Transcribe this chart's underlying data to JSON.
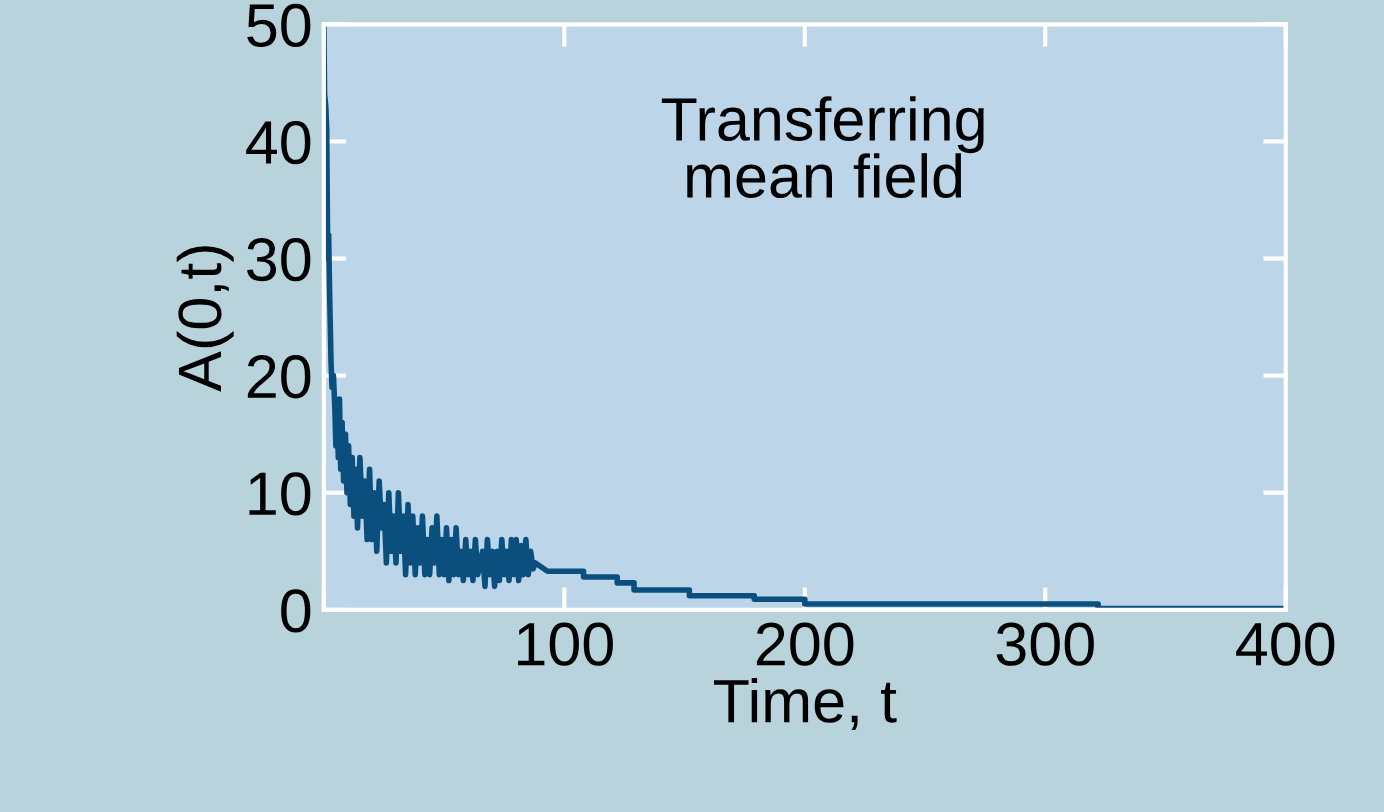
{
  "chart_data": {
    "type": "line",
    "xlabel": "Time, t",
    "ylabel": "A(0,t)",
    "xlim": [
      0,
      400
    ],
    "xticks": [
      {
        "value": 0,
        "label": null
      },
      100,
      200,
      300,
      400
    ],
    "ylim": [
      0,
      50
    ],
    "yticks": [
      0,
      10,
      20,
      30,
      40,
      50
    ],
    "grid": false,
    "annotations": [
      "Transferring\nmean field"
    ],
    "series": [
      {
        "color": "#0b4f7f",
        "x": [
          0,
          0.3,
          0.8,
          1.2,
          1.6,
          2,
          2.4,
          3,
          3.4,
          4,
          4.6,
          5,
          5.5,
          6,
          6.5,
          7,
          7.6,
          8.2,
          9,
          9.6,
          10.3,
          11,
          11.8,
          12.5,
          13.2,
          14,
          15,
          16,
          17,
          18,
          19,
          20,
          21,
          22,
          23,
          24,
          25,
          26,
          27,
          28,
          29,
          30,
          31,
          32,
          33,
          34,
          35,
          36,
          37,
          38,
          39,
          40,
          41,
          42,
          43,
          44,
          45,
          46,
          47,
          48,
          49,
          50,
          51,
          52,
          53,
          54,
          55,
          56,
          57,
          58,
          59,
          60,
          61,
          62,
          63,
          64,
          66,
          67,
          68,
          69,
          70,
          71,
          72,
          73,
          74,
          75,
          76,
          77,
          78,
          79,
          80,
          81,
          82,
          83,
          84,
          85,
          86,
          87,
          88,
          93,
          108,
          108,
          122,
          122,
          129,
          129,
          152,
          152,
          179,
          179,
          200,
          200,
          322,
          322,
          398
        ],
        "values": [
          50,
          44,
          43,
          41,
          30,
          32,
          27,
          21,
          19,
          20,
          17,
          14,
          17,
          13,
          18,
          12,
          16,
          11,
          15,
          10,
          14,
          9,
          13,
          8,
          12,
          7,
          13,
          8,
          11,
          6,
          12,
          6,
          10,
          5,
          11,
          7,
          9,
          4,
          10,
          5,
          8,
          4,
          10,
          5,
          8,
          3,
          9,
          4,
          8,
          3,
          7,
          4,
          8,
          3,
          6,
          3,
          7,
          4,
          8,
          3,
          6,
          3,
          7,
          2.5,
          6,
          3,
          7,
          3,
          5,
          2.5,
          6,
          3,
          5,
          2.5,
          6,
          3,
          5,
          2,
          6,
          3,
          5,
          2,
          5,
          2.5,
          6,
          3,
          5,
          2.5,
          6,
          3,
          6,
          2.5,
          5.5,
          3,
          6,
          3,
          5,
          3.5,
          4,
          3.3,
          3.3,
          2.8,
          2.8,
          2.3,
          2.3,
          1.7,
          1.7,
          1.2,
          1.2,
          0.9,
          0.9,
          0.5,
          0.5,
          0.1,
          0.1
        ]
      }
    ]
  }
}
